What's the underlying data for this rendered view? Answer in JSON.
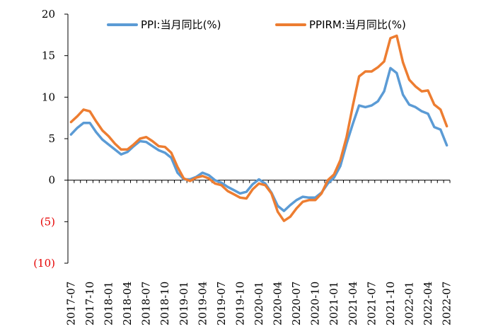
{
  "chart_data": {
    "type": "line",
    "x": [
      "2017-07",
      "2017-08",
      "2017-09",
      "2017-10",
      "2017-11",
      "2017-12",
      "2018-01",
      "2018-02",
      "2018-03",
      "2018-04",
      "2018-05",
      "2018-06",
      "2018-07",
      "2018-08",
      "2018-09",
      "2018-10",
      "2018-11",
      "2018-12",
      "2019-01",
      "2019-02",
      "2019-03",
      "2019-04",
      "2019-05",
      "2019-06",
      "2019-07",
      "2019-08",
      "2019-09",
      "2019-10",
      "2019-11",
      "2019-12",
      "2020-01",
      "2020-02",
      "2020-03",
      "2020-04",
      "2020-05",
      "2020-06",
      "2020-07",
      "2020-08",
      "2020-09",
      "2020-10",
      "2020-11",
      "2020-12",
      "2021-01",
      "2021-02",
      "2021-03",
      "2021-04",
      "2021-05",
      "2021-06",
      "2021-07",
      "2021-08",
      "2021-09",
      "2021-10",
      "2021-11",
      "2021-12",
      "2022-01",
      "2022-02",
      "2022-03",
      "2022-04",
      "2022-05",
      "2022-06",
      "2022-07"
    ],
    "x_tick_labels": [
      "2017-07",
      "2017-10",
      "2018-01",
      "2018-04",
      "2018-07",
      "2018-10",
      "2019-01",
      "2019-04",
      "2019-07",
      "2019-10",
      "2020-01",
      "2020-04",
      "2020-07",
      "2020-10",
      "2021-01",
      "2021-04",
      "2021-07",
      "2021-10",
      "2022-01",
      "2022-04",
      "2022-07"
    ],
    "y_tick_labels": [
      "20",
      "15",
      "10",
      "5",
      "0",
      "(5)",
      "(10)"
    ],
    "ylim": [
      -10,
      20
    ],
    "y_ticks": [
      20,
      15,
      10,
      5,
      0,
      -5,
      -10
    ],
    "grid": false,
    "legend_position": "top",
    "series": [
      {
        "name": "PPI:当月同比(%)",
        "color": "#5B9BD5",
        "values": [
          5.5,
          6.3,
          6.9,
          6.9,
          5.8,
          4.9,
          4.3,
          3.7,
          3.1,
          3.4,
          4.1,
          4.7,
          4.6,
          4.1,
          3.6,
          3.3,
          2.7,
          0.9,
          0.1,
          0.1,
          0.4,
          0.9,
          0.6,
          0.0,
          -0.3,
          -0.8,
          -1.2,
          -1.6,
          -1.4,
          -0.5,
          0.1,
          -0.4,
          -1.5,
          -3.1,
          -3.7,
          -3.0,
          -2.4,
          -2.0,
          -2.1,
          -2.1,
          -1.5,
          -0.4,
          0.3,
          1.7,
          4.4,
          6.8,
          9.0,
          8.8,
          9.0,
          9.5,
          10.7,
          13.5,
          12.9,
          10.3,
          9.1,
          8.8,
          8.3,
          8.0,
          6.4,
          6.1,
          4.2
        ]
      },
      {
        "name": "PPIRM:当月同比(%)",
        "color": "#ED7D31",
        "values": [
          7.0,
          7.7,
          8.5,
          8.3,
          7.1,
          6.0,
          5.3,
          4.4,
          3.7,
          3.7,
          4.3,
          5.0,
          5.2,
          4.7,
          4.1,
          4.0,
          3.3,
          1.6,
          0.2,
          -0.1,
          0.3,
          0.5,
          0.2,
          -0.4,
          -0.6,
          -1.3,
          -1.7,
          -2.1,
          -2.2,
          -1.1,
          -0.4,
          -0.6,
          -1.6,
          -3.8,
          -4.9,
          -4.4,
          -3.4,
          -2.6,
          -2.4,
          -2.4,
          -1.6,
          0.0,
          0.7,
          2.4,
          5.2,
          9.0,
          12.5,
          13.1,
          13.1,
          13.6,
          14.3,
          17.1,
          17.4,
          14.2,
          12.1,
          11.3,
          10.7,
          10.8,
          9.1,
          8.5,
          6.5
        ]
      }
    ]
  },
  "colors": {
    "axis": "#000000",
    "negative_label": "#E60000",
    "positive_label": "#000000"
  }
}
